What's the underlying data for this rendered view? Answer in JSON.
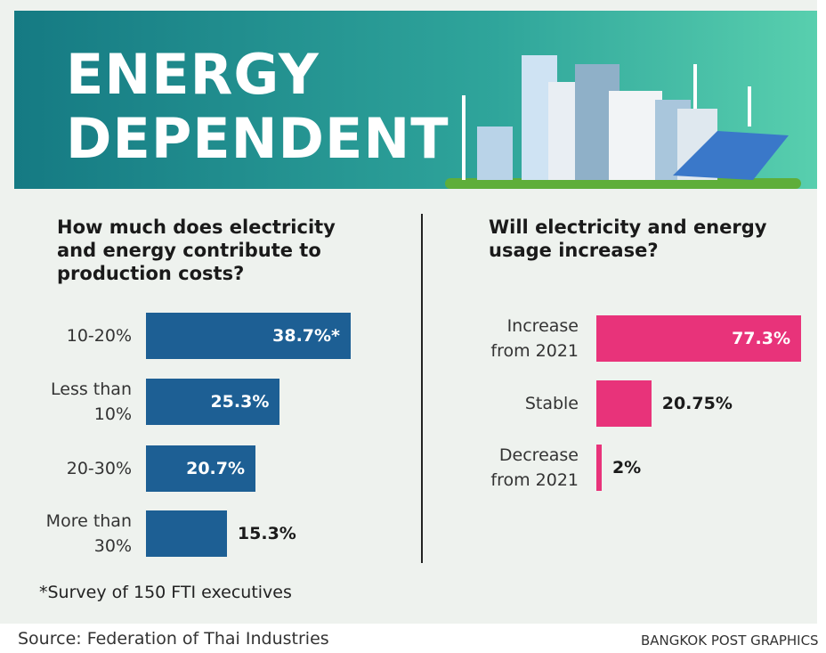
{
  "header": {
    "title": "ENERGY DEPENDENT"
  },
  "chart_data": [
    {
      "type": "bar",
      "title": "How much does electricity and energy contribute to production costs?",
      "categories": [
        "10-20%",
        "Less than 10%",
        "20-30%",
        "More than 30%"
      ],
      "values": [
        38.7,
        25.3,
        20.7,
        15.3
      ],
      "value_labels": [
        "38.7%*",
        "25.3%",
        "20.7%",
        "15.3%"
      ],
      "color": "#1d5f94"
    },
    {
      "type": "bar",
      "title": "Will electricity and energy usage increase?",
      "categories": [
        "Increase from 2021",
        "Stable",
        "Decrease from 2021"
      ],
      "values": [
        77.3,
        20.75,
        2
      ],
      "value_labels": [
        "77.3%",
        "20.75%",
        "2%"
      ],
      "color": "#e8337a"
    }
  ],
  "footnote": "*Survey of 150 FTI executives",
  "source": "Source: Federation of Thai Industries",
  "credit": "BANGKOK POST GRAPHICS"
}
